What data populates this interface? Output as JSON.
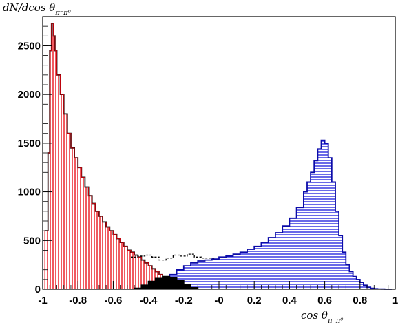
{
  "chart_data": {
    "type": "histogram",
    "title": "",
    "xlabel": "cos θ",
    "xlabel_sub": "π⁻π⁰",
    "ylabel": "dN/dcos θ",
    "ylabel_sub": "π⁻π⁰",
    "xlim": [
      -1,
      1
    ],
    "ylim": [
      0,
      2800
    ],
    "x_ticks": [
      "-1",
      "-0.8",
      "-0.6",
      "-0.4",
      "-0.2",
      "-0",
      "0.2",
      "0.4",
      "0.6",
      "0.8",
      "1"
    ],
    "y_ticks": [
      "0",
      "500",
      "1000",
      "1500",
      "2000",
      "2500"
    ],
    "grid": false,
    "legend": false,
    "colors": {
      "red": "#e8000b",
      "blue": "#1a1adb",
      "black": "#000000",
      "frame": "#000000"
    },
    "series": [
      {
        "style": "red-vertical-hatch",
        "x": [
          -0.99,
          -0.97,
          -0.96,
          -0.95,
          -0.94,
          -0.93,
          -0.92,
          -0.9,
          -0.88,
          -0.86,
          -0.84,
          -0.82,
          -0.8,
          -0.78,
          -0.76,
          -0.74,
          -0.72,
          -0.7,
          -0.68,
          -0.66,
          -0.64,
          -0.62,
          -0.6,
          -0.58,
          -0.56,
          -0.54,
          -0.52,
          -0.5,
          -0.48,
          -0.46,
          -0.44,
          -0.42,
          -0.4,
          -0.38,
          -0.36,
          -0.34,
          -0.32,
          -0.3,
          -0.28,
          -0.26,
          -0.24,
          -0.22,
          -0.2
        ],
        "values": [
          600,
          1400,
          2450,
          2730,
          2600,
          2450,
          2200,
          2000,
          1800,
          1600,
          1450,
          1350,
          1250,
          1150,
          1050,
          960,
          880,
          800,
          750,
          690,
          640,
          600,
          560,
          520,
          480,
          440,
          400,
          380,
          350,
          330,
          300,
          270,
          240,
          210,
          180,
          150,
          120,
          100,
          80,
          60,
          40,
          20,
          0
        ]
      },
      {
        "style": "blue-horizontal-hatch",
        "x": [
          -0.32,
          -0.28,
          -0.24,
          -0.2,
          -0.16,
          -0.12,
          -0.08,
          -0.04,
          0.0,
          0.04,
          0.08,
          0.12,
          0.16,
          0.2,
          0.24,
          0.28,
          0.32,
          0.36,
          0.4,
          0.44,
          0.48,
          0.5,
          0.52,
          0.54,
          0.56,
          0.58,
          0.6,
          0.62,
          0.64,
          0.66,
          0.68,
          0.7,
          0.72,
          0.74,
          0.76,
          0.78,
          0.8,
          0.82,
          0.84,
          0.86,
          0.88,
          0.9,
          0.92,
          0.94,
          0.96,
          0.98
        ],
        "values": [
          80,
          150,
          200,
          240,
          270,
          290,
          300,
          310,
          330,
          340,
          360,
          380,
          410,
          440,
          480,
          530,
          580,
          650,
          730,
          840,
          1000,
          1100,
          1200,
          1320,
          1440,
          1530,
          1500,
          1350,
          1100,
          800,
          550,
          380,
          250,
          180,
          130,
          100,
          70,
          40,
          20,
          10,
          5,
          3,
          2,
          1,
          1,
          0
        ]
      },
      {
        "style": "black-filled",
        "x": [
          -0.48,
          -0.44,
          -0.4,
          -0.36,
          -0.32,
          -0.28,
          -0.24,
          -0.2,
          -0.16,
          -0.12
        ],
        "values": [
          10,
          40,
          80,
          110,
          130,
          120,
          90,
          50,
          15,
          0
        ]
      },
      {
        "style": "dashed-total",
        "x": [
          -0.5,
          -0.46,
          -0.42,
          -0.38,
          -0.34,
          -0.3,
          -0.26,
          -0.22,
          -0.18,
          -0.14,
          -0.1,
          -0.06,
          -0.02
        ],
        "values": [
          330,
          340,
          350,
          330,
          300,
          320,
          350,
          340,
          360,
          330,
          320,
          320,
          320
        ]
      }
    ]
  }
}
